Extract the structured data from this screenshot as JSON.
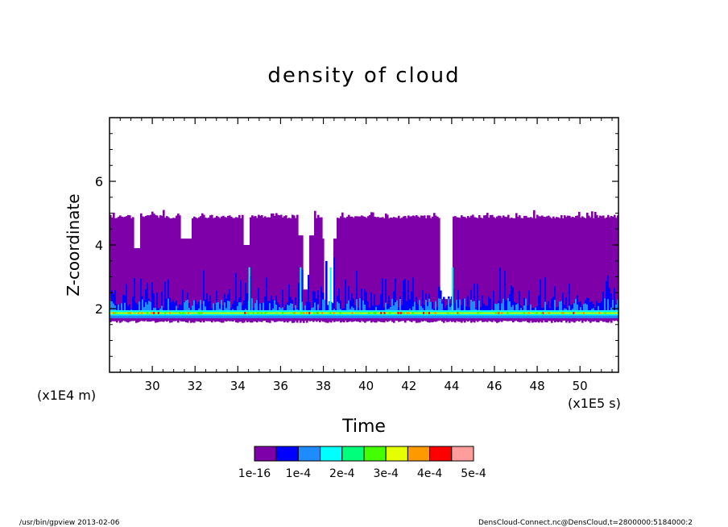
{
  "chart_data": {
    "type": "heatmap",
    "title": "density of cloud",
    "xlabel": "Time",
    "ylabel": "Z-coordinate",
    "x_unit": "(x1E5 s)",
    "y_unit": "(x1E4 m)",
    "xlim": [
      28.0,
      51.8
    ],
    "ylim": [
      0.0,
      8.0
    ],
    "x_ticks": [
      "30",
      "32",
      "34",
      "36",
      "38",
      "40",
      "42",
      "44",
      "46",
      "48",
      "50"
    ],
    "x_tick_values": [
      30,
      32,
      34,
      36,
      38,
      40,
      42,
      44,
      46,
      48,
      50
    ],
    "y_ticks": [
      "2",
      "4",
      "6"
    ],
    "y_tick_values": [
      2,
      4,
      6
    ],
    "colorbar": {
      "labels": [
        "1e-16",
        "1e-4",
        "2e-4",
        "3e-4",
        "4e-4",
        "5e-4"
      ],
      "colors": [
        "#7e00a8",
        "#0000ff",
        "#1e8cff",
        "#00ffff",
        "#00ff7a",
        "#44ff00",
        "#e6ff00",
        "#ff9900",
        "#ff0000",
        "#ff9c9c"
      ]
    },
    "cloud_layer": {
      "base": 1.55,
      "top_typical": 4.95,
      "dense_core": [
        1.75,
        1.95
      ],
      "gaps": [
        {
          "x": [
            29.1,
            29.4
          ],
          "y_below": 3.9
        },
        {
          "x": [
            31.3,
            31.8
          ],
          "y_below": 4.2
        },
        {
          "x": [
            34.2,
            34.5
          ],
          "y_below": 4.0
        },
        {
          "x": [
            37.0,
            37.3
          ],
          "y_below": 2.6
        },
        {
          "x": [
            38.0,
            38.4
          ],
          "y_below": 2.1
        },
        {
          "x": [
            43.4,
            44.0
          ],
          "y_below": 2.3
        }
      ]
    }
  },
  "footer": {
    "left": "/usr/bin/gpview   2013-02-06",
    "right": "DensCloud-Connect.nc@DensCloud,t=2800000:5184000:2"
  }
}
